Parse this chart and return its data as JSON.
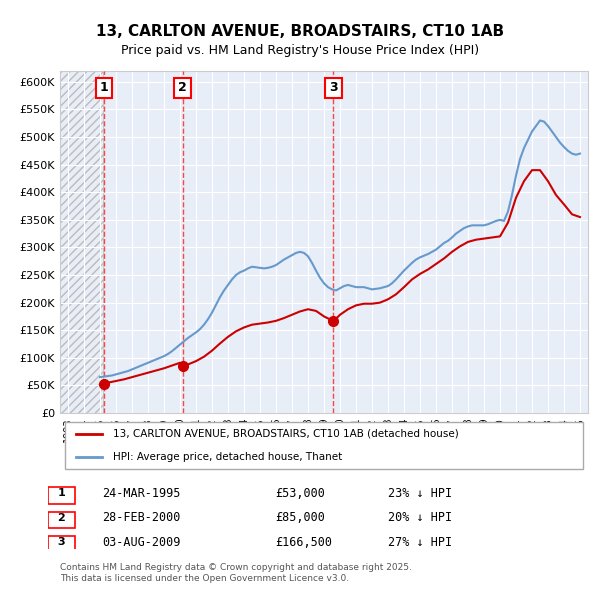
{
  "title": "13, CARLTON AVENUE, BROADSTAIRS, CT10 1AB",
  "subtitle": "Price paid vs. HM Land Registry's House Price Index (HPI)",
  "ylabel": "",
  "xlabel": "",
  "ylim": [
    0,
    620000
  ],
  "yticks": [
    0,
    50000,
    100000,
    150000,
    200000,
    250000,
    300000,
    350000,
    400000,
    450000,
    500000,
    550000,
    600000
  ],
  "ytick_labels": [
    "£0",
    "£50K",
    "£100K",
    "£150K",
    "£200K",
    "£250K",
    "£300K",
    "£350K",
    "£400K",
    "£450K",
    "£500K",
    "£550K",
    "£600K"
  ],
  "xlim_start": 1992.5,
  "xlim_end": 2025.5,
  "hatch_end_year": 1995.2,
  "sale_color": "#cc0000",
  "hpi_color": "#6699cc",
  "background_color": "#e8eef8",
  "grid_color": "#ffffff",
  "sales": [
    {
      "year": 1995.23,
      "price": 53000,
      "label": "1",
      "date": "24-MAR-1995",
      "pct": "23%"
    },
    {
      "year": 2000.16,
      "price": 85000,
      "label": "2",
      "date": "28-FEB-2000",
      "pct": "20%"
    },
    {
      "year": 2009.59,
      "price": 166500,
      "label": "3",
      "date": "03-AUG-2009",
      "pct": "27%"
    }
  ],
  "legend_entry1": "13, CARLTON AVENUE, BROADSTAIRS, CT10 1AB (detached house)",
  "legend_entry2": "HPI: Average price, detached house, Thanet",
  "footer": "Contains HM Land Registry data © Crown copyright and database right 2025.\nThis data is licensed under the Open Government Licence v3.0.",
  "hpi_data_x": [
    1995.0,
    1995.25,
    1995.5,
    1995.75,
    1996.0,
    1996.25,
    1996.5,
    1996.75,
    1997.0,
    1997.25,
    1997.5,
    1997.75,
    1998.0,
    1998.25,
    1998.5,
    1998.75,
    1999.0,
    1999.25,
    1999.5,
    1999.75,
    2000.0,
    2000.25,
    2000.5,
    2000.75,
    2001.0,
    2001.25,
    2001.5,
    2001.75,
    2002.0,
    2002.25,
    2002.5,
    2002.75,
    2003.0,
    2003.25,
    2003.5,
    2003.75,
    2004.0,
    2004.25,
    2004.5,
    2004.75,
    2005.0,
    2005.25,
    2005.5,
    2005.75,
    2006.0,
    2006.25,
    2006.5,
    2006.75,
    2007.0,
    2007.25,
    2007.5,
    2007.75,
    2008.0,
    2008.25,
    2008.5,
    2008.75,
    2009.0,
    2009.25,
    2009.5,
    2009.75,
    2010.0,
    2010.25,
    2010.5,
    2010.75,
    2011.0,
    2011.25,
    2011.5,
    2011.75,
    2012.0,
    2012.25,
    2012.5,
    2012.75,
    2013.0,
    2013.25,
    2013.5,
    2013.75,
    2014.0,
    2014.25,
    2014.5,
    2014.75,
    2015.0,
    2015.25,
    2015.5,
    2015.75,
    2016.0,
    2016.25,
    2016.5,
    2016.75,
    2017.0,
    2017.25,
    2017.5,
    2017.75,
    2018.0,
    2018.25,
    2018.5,
    2018.75,
    2019.0,
    2019.25,
    2019.5,
    2019.75,
    2020.0,
    2020.25,
    2020.5,
    2020.75,
    2021.0,
    2021.25,
    2021.5,
    2021.75,
    2022.0,
    2022.25,
    2022.5,
    2022.75,
    2023.0,
    2023.25,
    2023.5,
    2023.75,
    2024.0,
    2024.25,
    2024.5,
    2024.75,
    2025.0
  ],
  "hpi_data_y": [
    65000,
    66000,
    67000,
    68000,
    70000,
    72000,
    74000,
    76000,
    79000,
    82000,
    85000,
    88000,
    91000,
    94000,
    97000,
    100000,
    103000,
    107000,
    112000,
    118000,
    124000,
    130000,
    136000,
    141000,
    146000,
    152000,
    160000,
    170000,
    182000,
    196000,
    210000,
    222000,
    232000,
    242000,
    250000,
    255000,
    258000,
    262000,
    265000,
    264000,
    263000,
    262000,
    263000,
    265000,
    268000,
    273000,
    278000,
    282000,
    286000,
    290000,
    292000,
    290000,
    284000,
    272000,
    258000,
    245000,
    235000,
    228000,
    224000,
    222000,
    226000,
    230000,
    232000,
    230000,
    228000,
    228000,
    228000,
    226000,
    224000,
    225000,
    226000,
    228000,
    230000,
    235000,
    242000,
    250000,
    258000,
    265000,
    272000,
    278000,
    282000,
    285000,
    288000,
    292000,
    296000,
    302000,
    308000,
    312000,
    318000,
    325000,
    330000,
    335000,
    338000,
    340000,
    340000,
    340000,
    340000,
    342000,
    345000,
    348000,
    350000,
    348000,
    365000,
    395000,
    430000,
    460000,
    480000,
    495000,
    510000,
    520000,
    530000,
    528000,
    520000,
    510000,
    500000,
    490000,
    482000,
    475000,
    470000,
    468000,
    470000
  ],
  "sale_data_x": [
    1995.23,
    2000.16,
    2009.59
  ],
  "sale_data_y": [
    53000,
    85000,
    166500
  ],
  "prop_line_x": [
    1995.23,
    1995.5,
    1996.0,
    1996.5,
    1997.0,
    1997.5,
    1998.0,
    1998.5,
    1999.0,
    1999.5,
    2000.0,
    2000.16,
    2000.5,
    2001.0,
    2001.5,
    2002.0,
    2002.5,
    2003.0,
    2003.5,
    2004.0,
    2004.5,
    2005.0,
    2005.5,
    2006.0,
    2006.5,
    2007.0,
    2007.5,
    2008.0,
    2008.5,
    2009.0,
    2009.59,
    2010.0,
    2010.5,
    2011.0,
    2011.5,
    2012.0,
    2012.5,
    2013.0,
    2013.5,
    2014.0,
    2014.5,
    2015.0,
    2015.5,
    2016.0,
    2016.5,
    2017.0,
    2017.5,
    2018.0,
    2018.5,
    2019.0,
    2019.5,
    2020.0,
    2020.5,
    2021.0,
    2021.5,
    2022.0,
    2022.5,
    2023.0,
    2023.5,
    2024.0,
    2024.5,
    2025.0
  ],
  "prop_line_y": [
    53000,
    55000,
    58000,
    61000,
    65000,
    69000,
    73000,
    77000,
    81000,
    86000,
    91000,
    85000,
    88000,
    94000,
    102000,
    113000,
    126000,
    138000,
    148000,
    155000,
    160000,
    162000,
    164000,
    167000,
    172000,
    178000,
    184000,
    188000,
    185000,
    175000,
    166500,
    178000,
    188000,
    195000,
    198000,
    198000,
    200000,
    206000,
    215000,
    228000,
    242000,
    252000,
    260000,
    270000,
    280000,
    292000,
    302000,
    310000,
    314000,
    316000,
    318000,
    320000,
    345000,
    390000,
    420000,
    440000,
    440000,
    420000,
    395000,
    378000,
    360000,
    355000
  ]
}
